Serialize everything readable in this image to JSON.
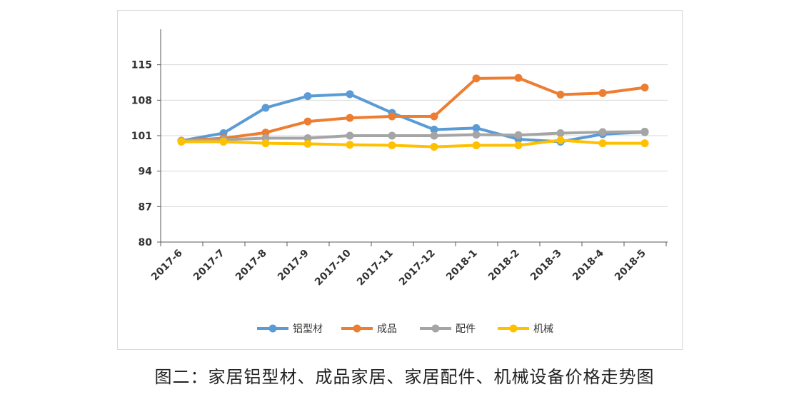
{
  "chart_data": {
    "type": "line",
    "title": "",
    "xlabel": "",
    "ylabel": "",
    "categories": [
      "2017-6",
      "2017-7",
      "2017-8",
      "2017-9",
      "2017-10",
      "2017-11",
      "2017-12",
      "2018-1",
      "2018-2",
      "2018-3",
      "2018-4",
      "2018-5"
    ],
    "ylim": [
      80,
      122
    ],
    "yticks": [
      "80",
      "87",
      "94",
      "101",
      "108",
      "115"
    ],
    "grid": true,
    "legend": "bottom",
    "series": [
      {
        "name": "铝型材",
        "color": "#5b9bd5",
        "values": [
          100,
          101.5,
          106.5,
          108.8,
          109.2,
          105.5,
          102.2,
          102.5,
          100.3,
          99.8,
          101.3,
          101.7
        ]
      },
      {
        "name": "成品",
        "color": "#ed7d31",
        "values": [
          100,
          100.5,
          101.6,
          103.8,
          104.5,
          104.8,
          104.8,
          112.3,
          112.4,
          109.1,
          109.4,
          110.5
        ]
      },
      {
        "name": "配件",
        "color": "#a5a5a5",
        "values": [
          100,
          100.2,
          100.5,
          100.5,
          101,
          101,
          101,
          101.2,
          101.1,
          101.5,
          101.7,
          101.8
        ]
      },
      {
        "name": "机械",
        "color": "#ffc000",
        "values": [
          99.8,
          99.8,
          99.5,
          99.4,
          99.2,
          99.1,
          98.8,
          99.1,
          99.1,
          100.1,
          99.5,
          99.5
        ]
      }
    ]
  },
  "caption": "图二：家居铝型材、成品家居、家居配件、机械设备价格走势图"
}
